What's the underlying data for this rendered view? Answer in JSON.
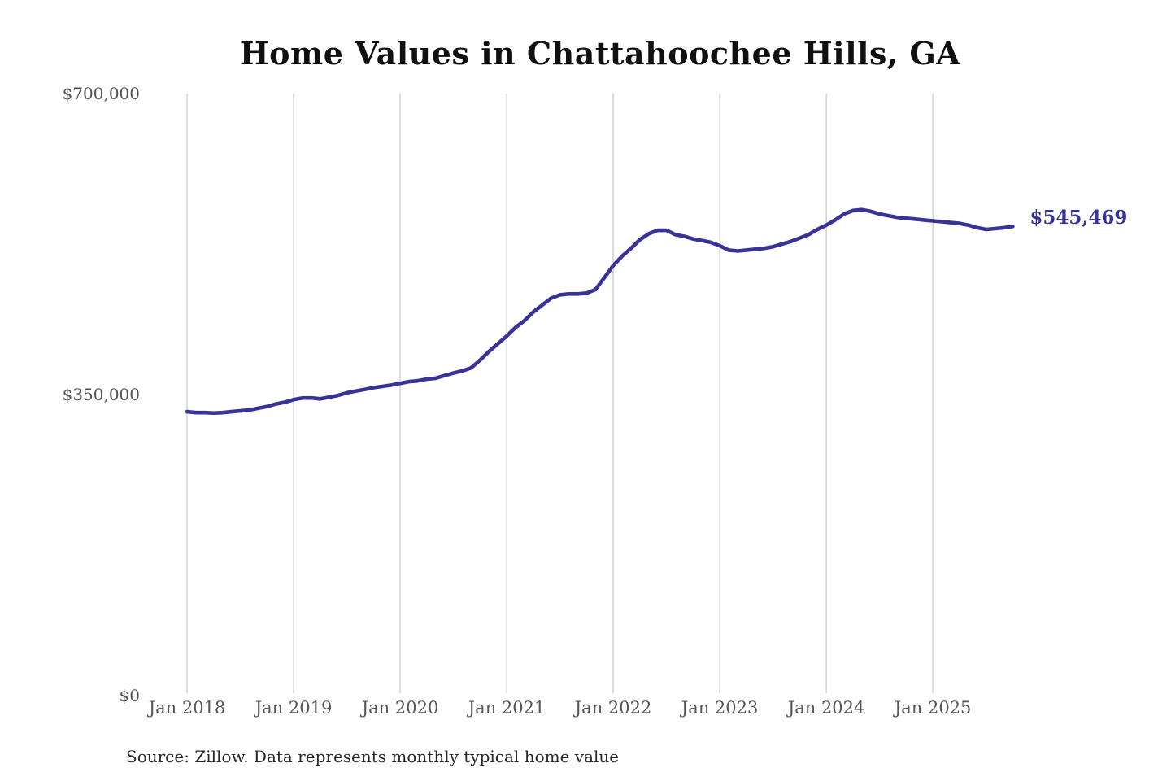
{
  "style": {
    "line_color": "#3a3397",
    "grid_color": "#cbcbcb",
    "tick_color": "#555555",
    "title_color": "#101010",
    "source_color": "#262626",
    "background": "#ffffff"
  },
  "chart_data": {
    "type": "line",
    "title": "Home Values in Chattahoochee Hills, GA",
    "source_note": "Source: Zillow. Data represents monthly typical home value",
    "series_name": "Monthly typical home value",
    "xlabel": "",
    "ylabel": "",
    "ylim": [
      0,
      700000
    ],
    "grid": "vertical",
    "legend": "none",
    "final_label": "$545,469",
    "final_value": 545469,
    "y_ticks": [
      {
        "label": "$700,000",
        "value": 700000
      },
      {
        "label": "$350,000",
        "value": 350000
      },
      {
        "label": "$0",
        "value": 0
      }
    ],
    "x_ticks": [
      {
        "label": "Jan 2018",
        "month_index": 0
      },
      {
        "label": "Jan 2019",
        "month_index": 12
      },
      {
        "label": "Jan 2020",
        "month_index": 24
      },
      {
        "label": "Jan 2021",
        "month_index": 36
      },
      {
        "label": "Jan 2022",
        "month_index": 48
      },
      {
        "label": "Jan 2023",
        "month_index": 60
      },
      {
        "label": "Jan 2024",
        "month_index": 72
      },
      {
        "label": "Jan 2025",
        "month_index": 84
      }
    ],
    "x": [
      "2018-01",
      "2018-02",
      "2018-03",
      "2018-04",
      "2018-05",
      "2018-06",
      "2018-07",
      "2018-08",
      "2018-09",
      "2018-10",
      "2018-11",
      "2018-12",
      "2019-01",
      "2019-02",
      "2019-03",
      "2019-04",
      "2019-05",
      "2019-06",
      "2019-07",
      "2019-08",
      "2019-09",
      "2019-10",
      "2019-11",
      "2019-12",
      "2020-01",
      "2020-02",
      "2020-03",
      "2020-04",
      "2020-05",
      "2020-06",
      "2020-07",
      "2020-08",
      "2020-09",
      "2020-10",
      "2020-11",
      "2020-12",
      "2021-01",
      "2021-02",
      "2021-03",
      "2021-04",
      "2021-05",
      "2021-06",
      "2021-07",
      "2021-08",
      "2021-09",
      "2021-10",
      "2021-11",
      "2021-12",
      "2022-01",
      "2022-02",
      "2022-03",
      "2022-04",
      "2022-05",
      "2022-06",
      "2022-07",
      "2022-08",
      "2022-09",
      "2022-10",
      "2022-11",
      "2022-12",
      "2023-01",
      "2023-02",
      "2023-03",
      "2023-04",
      "2023-05",
      "2023-06",
      "2023-07",
      "2023-08",
      "2023-09",
      "2023-10",
      "2023-11",
      "2023-12",
      "2024-01",
      "2024-02",
      "2024-03",
      "2024-04",
      "2024-05",
      "2024-06",
      "2024-07",
      "2024-08",
      "2024-09",
      "2024-10",
      "2024-11",
      "2024-12",
      "2025-01",
      "2025-02",
      "2025-03",
      "2025-04",
      "2025-05",
      "2025-06",
      "2025-07",
      "2025-08",
      "2025-09",
      "2025-10"
    ],
    "values": [
      330000,
      329000,
      329000,
      328500,
      329000,
      330000,
      331000,
      332000,
      334000,
      336000,
      339000,
      341000,
      344000,
      346000,
      346000,
      345000,
      347000,
      349000,
      352000,
      354000,
      356000,
      358000,
      359500,
      361000,
      363000,
      365000,
      366000,
      368000,
      369000,
      372000,
      375000,
      377500,
      381000,
      390000,
      400000,
      409000,
      418000,
      428000,
      436000,
      446000,
      454000,
      462000,
      466000,
      467000,
      467000,
      468000,
      472000,
      486000,
      500000,
      511000,
      520000,
      530000,
      537000,
      541000,
      541000,
      536000,
      534000,
      531000,
      529000,
      527000,
      523000,
      518000,
      517000,
      518000,
      519000,
      520000,
      522000,
      525000,
      528000,
      532000,
      536000,
      542000,
      547000,
      553000,
      560000,
      564000,
      565000,
      563000,
      560000,
      558000,
      556000,
      555000,
      554000,
      553000,
      552000,
      551000,
      550000,
      549000,
      547000,
      544000,
      542000,
      543000,
      544000,
      545469
    ]
  }
}
